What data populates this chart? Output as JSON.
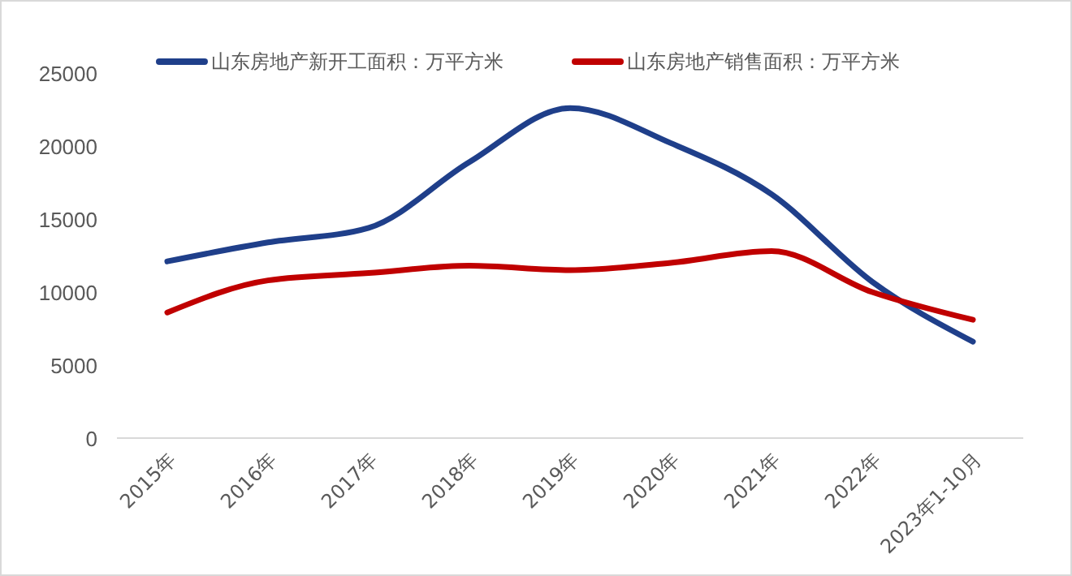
{
  "chart_data": {
    "type": "line",
    "categories": [
      "2015年",
      "2016年",
      "2017年",
      "2018年",
      "2019年",
      "2020年",
      "2021年",
      "2022年",
      "2023年1-10月"
    ],
    "series": [
      {
        "name": "山东房地产新开工面积：万平方米",
        "color": "#1f3f8a",
        "values": [
          12100,
          13400,
          14400,
          18900,
          22600,
          20200,
          16700,
          10700,
          6600
        ]
      },
      {
        "name": "山东房地产销售面积：万平方米",
        "color": "#c00000",
        "values": [
          8600,
          10800,
          11300,
          11800,
          11500,
          12000,
          12800,
          10000,
          8100
        ]
      }
    ],
    "ylim": [
      0,
      25000
    ],
    "yticks": [
      0,
      5000,
      10000,
      15000,
      20000,
      25000
    ],
    "grid": false,
    "legend": "top",
    "marker": "none",
    "line_style": "solid"
  }
}
